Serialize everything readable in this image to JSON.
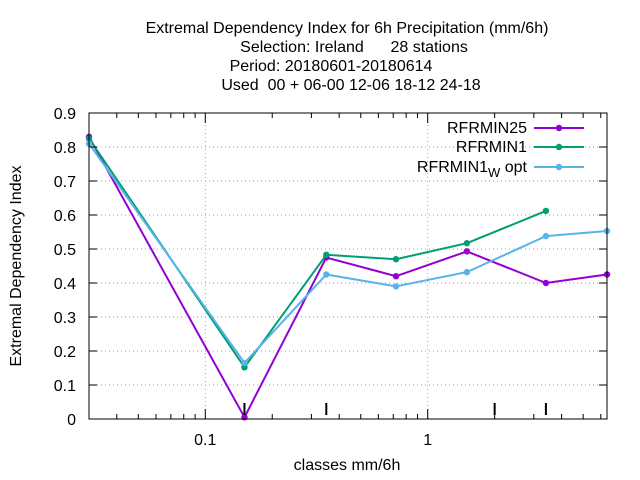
{
  "chart_data": {
    "type": "line",
    "title_lines": [
      "Extremal Dependency Index  for 6h Precipitation (mm/6h)",
      "Selection: Ireland      28 stations",
      "Period: 20180601-20180614",
      "Used  00 + 06-00 12-06 18-12 24-18"
    ],
    "xlabel": "classes mm/6h",
    "ylabel": "Extremal Dependency Index",
    "x_scale": "log",
    "xlim": [
      0.03,
      6.4
    ],
    "ylim": [
      0,
      0.9
    ],
    "y_ticks": [
      "0",
      "0.1",
      "0.2",
      "0.3",
      "0.4",
      "0.5",
      "0.6",
      "0.7",
      "0.8",
      "0.9"
    ],
    "x_major_ticks": [
      {
        "value": 0.1,
        "label": "0.1"
      },
      {
        "value": 1,
        "label": "1"
      }
    ],
    "grid": true,
    "legend_position": "top-right",
    "series": [
      {
        "name": "RFRMIN25",
        "color": "#9400d3",
        "points": [
          [
            0.03,
            0.83
          ],
          [
            0.15,
            0.005
          ],
          [
            0.35,
            0.475
          ],
          [
            0.72,
            0.42
          ],
          [
            1.5,
            0.493
          ],
          [
            3.4,
            0.4
          ],
          [
            6.4,
            0.425
          ]
        ]
      },
      {
        "name": "RFRMIN1",
        "color": "#009e73",
        "points": [
          [
            0.03,
            0.825
          ],
          [
            0.15,
            0.152
          ],
          [
            0.35,
            0.483
          ],
          [
            0.72,
            0.47
          ],
          [
            1.5,
            0.517
          ],
          [
            3.4,
            0.612
          ]
        ]
      },
      {
        "name": "RFRMIN1",
        "name_subscript": "W",
        "name_suffix": " opt",
        "color": "#56b4e9",
        "points": [
          [
            0.03,
            0.81
          ],
          [
            0.15,
            0.165
          ],
          [
            0.35,
            0.425
          ],
          [
            0.72,
            0.39
          ],
          [
            1.5,
            0.432
          ],
          [
            3.4,
            0.538
          ],
          [
            6.4,
            0.553
          ]
        ]
      }
    ]
  }
}
